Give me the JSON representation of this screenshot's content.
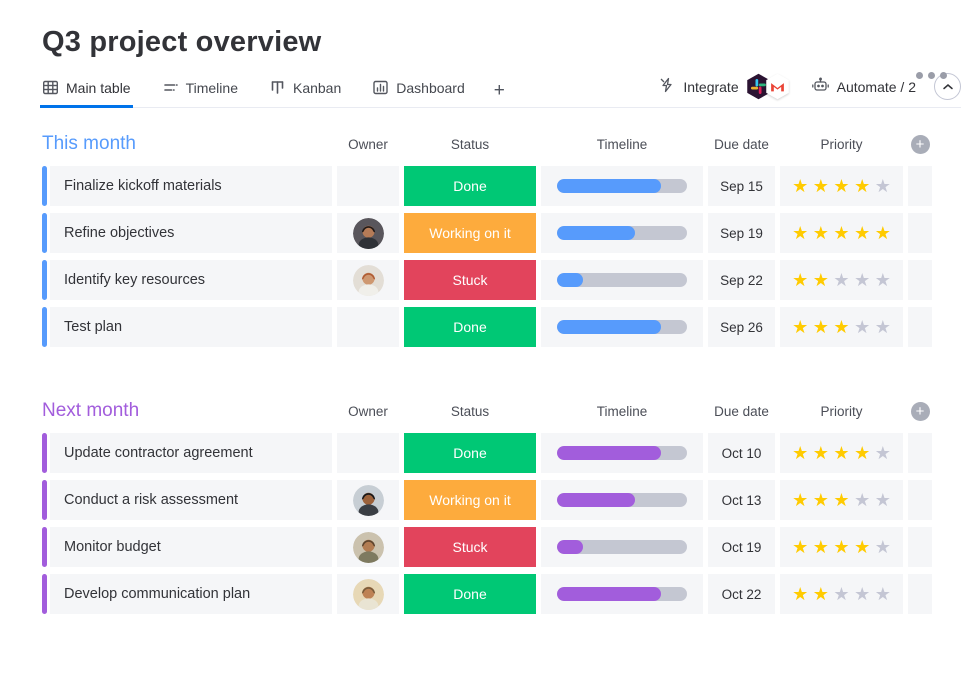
{
  "header": {
    "title": "Q3 project overview"
  },
  "tabs": {
    "items": [
      {
        "label": "Main table",
        "icon": "table-icon",
        "active": true
      },
      {
        "label": "Timeline",
        "icon": "timeline-icon",
        "active": false
      },
      {
        "label": "Kanban",
        "icon": "kanban-icon",
        "active": false
      },
      {
        "label": "Dashboard",
        "icon": "dashboard-icon",
        "active": false
      }
    ],
    "add_label": "+"
  },
  "toolbar": {
    "integrate_label": "Integrate",
    "integration_badges": [
      "slack-icon",
      "gmail-icon"
    ],
    "automate_label": "Automate / 2"
  },
  "table": {
    "columns": [
      "Owner",
      "Status",
      "Timeline",
      "Due date",
      "Priority"
    ],
    "add_column_glyph": "+",
    "star_glyph": "★",
    "status_colors": {
      "Done": "#00C875",
      "Working on it": "#FDAB3D",
      "Stuck": "#E2445C"
    },
    "star_filled_color": "#FFCB00",
    "star_empty_color": "#C4C6D4",
    "groups": [
      {
        "name": "This month",
        "color": "#579BFC",
        "rows": [
          {
            "task": "Finalize kickoff materials",
            "avatar": null,
            "status": "Done",
            "progress": 80,
            "due": "Sep 15",
            "stars": 4
          },
          {
            "task": "Refine objectives",
            "avatar": {
              "bg": "#59565c",
              "hair": "#201a18",
              "skin": "#b57b57",
              "shirt": "#2f3237"
            },
            "status": "Working on it",
            "progress": 60,
            "due": "Sep 19",
            "stars": 5
          },
          {
            "task": "Identify key resources",
            "avatar": {
              "bg": "#e3ded6",
              "hair": "#b05c34",
              "skin": "#ce9871",
              "shirt": "#f0efea"
            },
            "status": "Stuck",
            "progress": 20,
            "due": "Sep 22",
            "stars": 2
          },
          {
            "task": "Test plan",
            "avatar": null,
            "status": "Done",
            "progress": 80,
            "due": "Sep 26",
            "stars": 3
          }
        ]
      },
      {
        "name": "Next month",
        "color": "#A25DDC",
        "rows": [
          {
            "task": "Update contractor agreement",
            "avatar": null,
            "status": "Done",
            "progress": 80,
            "due": "Oct 10",
            "stars": 4
          },
          {
            "task": "Conduct a risk assessment",
            "avatar": {
              "bg": "#c7ced4",
              "hair": "#17181b",
              "skin": "#9c623b",
              "shirt": "#3a3e44"
            },
            "status": "Working on it",
            "progress": 60,
            "due": "Oct 13",
            "stars": 3
          },
          {
            "task": "Monitor budget",
            "avatar": {
              "bg": "#cbc2ae",
              "hair": "#5e452e",
              "skin": "#b27c52",
              "shirt": "#7e7a60"
            },
            "status": "Stuck",
            "progress": 20,
            "due": "Oct 19",
            "stars": 4
          },
          {
            "task": "Develop communication plan",
            "avatar": {
              "bg": "#e7d8b6",
              "hair": "#7a5c3a",
              "skin": "#be8254",
              "shirt": "#e9e4d3"
            },
            "status": "Done",
            "progress": 80,
            "due": "Oct 22",
            "stars": 2
          }
        ]
      }
    ]
  }
}
